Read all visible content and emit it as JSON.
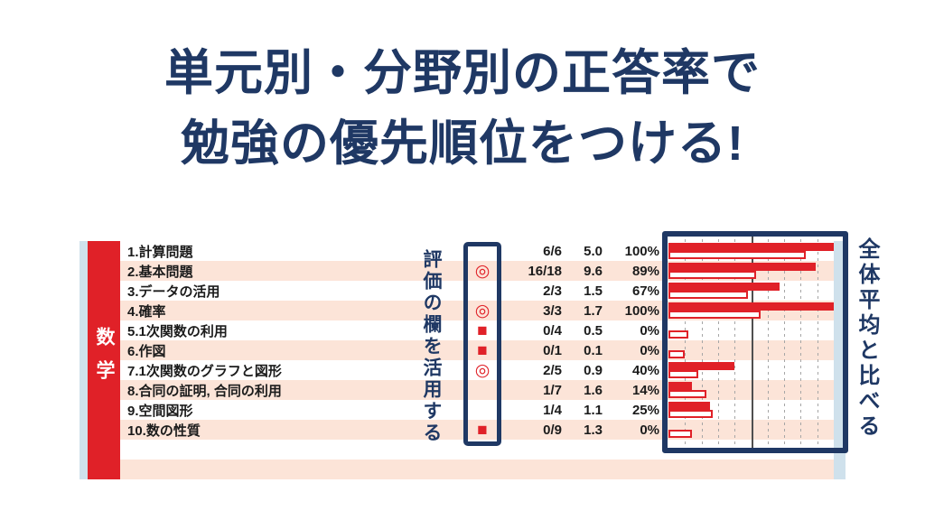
{
  "title": {
    "line1": "単元別・分野別の正答率で",
    "line2": "勉強の優先順位をつける!"
  },
  "colors": {
    "navy": "#1f3864",
    "red": "#e02128",
    "row_pink": "#fce4d8",
    "edge_blue": "#cfe1ec",
    "grid_gray": "#a6a6a6",
    "reference_line": "#4f4f4f"
  },
  "report": {
    "subject": "数学",
    "rows": [
      {
        "name": "1.計算問題",
        "mark": "",
        "score": "6/6",
        "average": "5.0",
        "rate": "100%"
      },
      {
        "name": "2.基本問題",
        "mark": "◎",
        "score": "16/18",
        "average": "9.6",
        "rate": "89%"
      },
      {
        "name": "3.データの活用",
        "mark": "",
        "score": "2/3",
        "average": "1.5",
        "rate": "67%"
      },
      {
        "name": "4.確率",
        "mark": "◎",
        "score": "3/3",
        "average": "1.7",
        "rate": "100%"
      },
      {
        "name": "5.1次関数の利用",
        "mark": "■",
        "score": "0/4",
        "average": "0.5",
        "rate": "0%"
      },
      {
        "name": "6.作図",
        "mark": "■",
        "score": "0/1",
        "average": "0.1",
        "rate": "0%"
      },
      {
        "name": "7.1次関数のグラフと図形",
        "mark": "◎",
        "score": "2/5",
        "average": "0.9",
        "rate": "40%"
      },
      {
        "name": "8.合同の証明, 合同の利用",
        "mark": "",
        "score": "1/7",
        "average": "1.6",
        "rate": "14%"
      },
      {
        "name": "9.空間図形",
        "mark": "",
        "score": "1/4",
        "average": "1.1",
        "rate": "25%"
      },
      {
        "name": "10.数の性質",
        "mark": "■",
        "score": "0/9",
        "average": "1.3",
        "rate": "0%"
      }
    ]
  },
  "annotations": {
    "eval_note": "評価の欄を活用する",
    "chart_note": "全体平均と比べる"
  },
  "chart_data": {
    "type": "bar",
    "orientation": "horizontal",
    "categories": [
      "1.計算問題",
      "2.基本問題",
      "3.データの活用",
      "4.確率",
      "5.1次関数の利用",
      "6.作図",
      "7.1次関数のグラフと図形",
      "8.合同の証明, 合同の利用",
      "9.空間図形",
      "10.数の性質"
    ],
    "series": [
      {
        "name": "正答率",
        "style": "filled",
        "color": "#e02128",
        "values": [
          100,
          89,
          67,
          100,
          0,
          0,
          40,
          14,
          25,
          0
        ]
      },
      {
        "name": "全体平均",
        "style": "outlined",
        "color": "#e02128",
        "values": [
          83,
          53,
          48,
          56,
          12,
          10,
          18,
          23,
          27,
          14
        ]
      }
    ],
    "xlim": [
      0,
      100
    ],
    "gridline_interval": 10,
    "reference_line_x": 50,
    "grid": "dashed-vertical",
    "legend": "none"
  }
}
